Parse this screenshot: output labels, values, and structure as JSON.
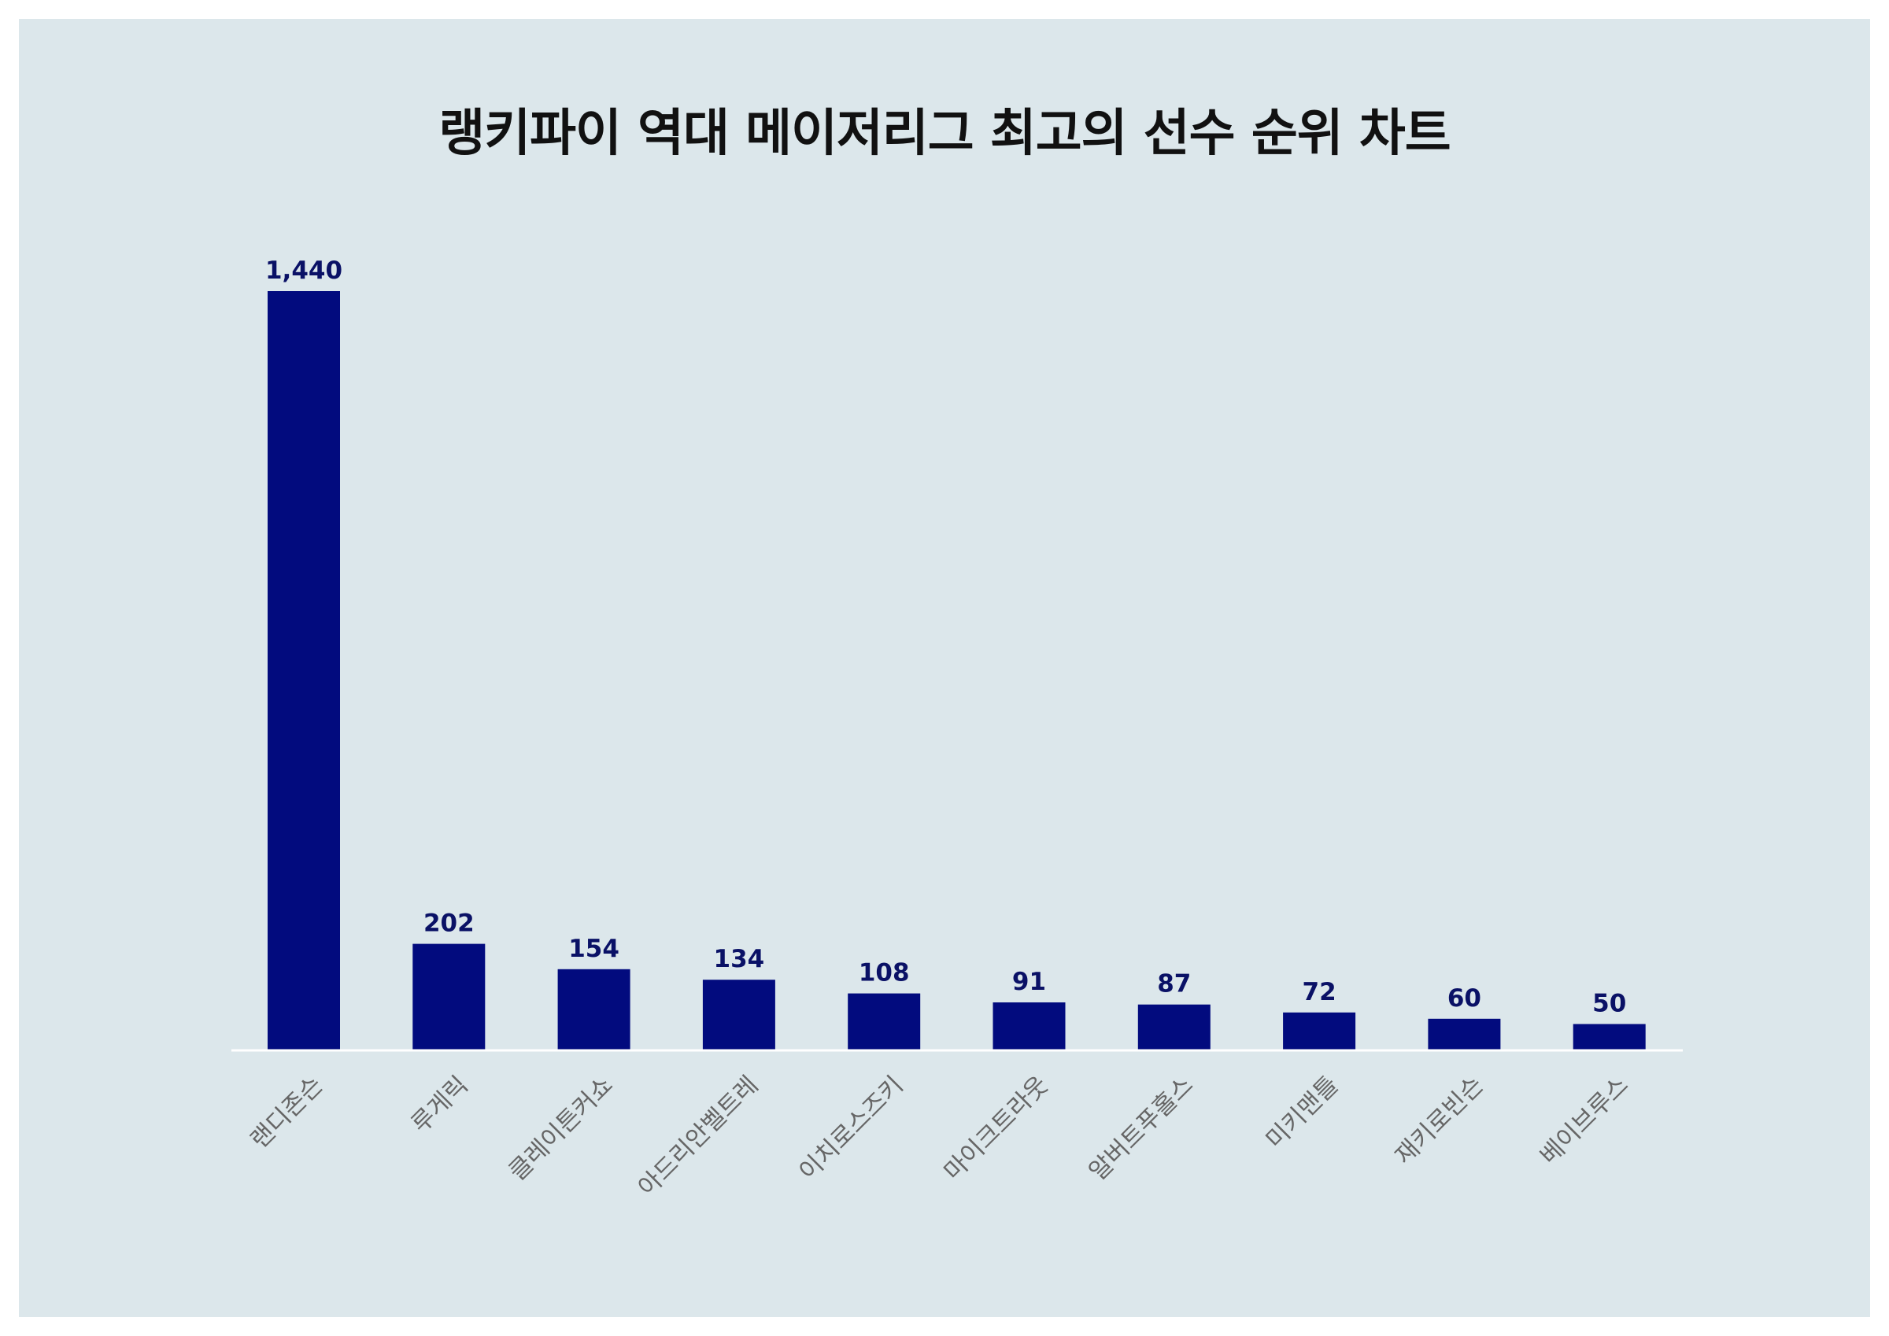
{
  "chart_data": {
    "type": "bar",
    "title": "랭키파이 역대 메이저리그 최고의 선수 순위 차트",
    "xlabel": "",
    "ylabel": "",
    "categories": [
      "랜디존슨",
      "루게릭",
      "클레이튼커쇼",
      "아드리안벨트레",
      "이치로스즈키",
      "마이크트라웃",
      "알버트푸홀스",
      "미키맨틀",
      "재키로빈슨",
      "베이브루스"
    ],
    "values": [
      1440,
      202,
      154,
      134,
      108,
      91,
      87,
      72,
      60,
      50
    ],
    "value_labels": [
      "1,440",
      "202",
      "154",
      "134",
      "108",
      "91",
      "87",
      "72",
      "60",
      "50"
    ],
    "ylim": [
      0,
      1440
    ],
    "grid": false,
    "legend": "none",
    "colors": {
      "bar": "#020b7e",
      "value_label": "#0a1166",
      "tick_label": "#666666",
      "background": "#dce7eb",
      "baseline": "#ffffff"
    }
  }
}
